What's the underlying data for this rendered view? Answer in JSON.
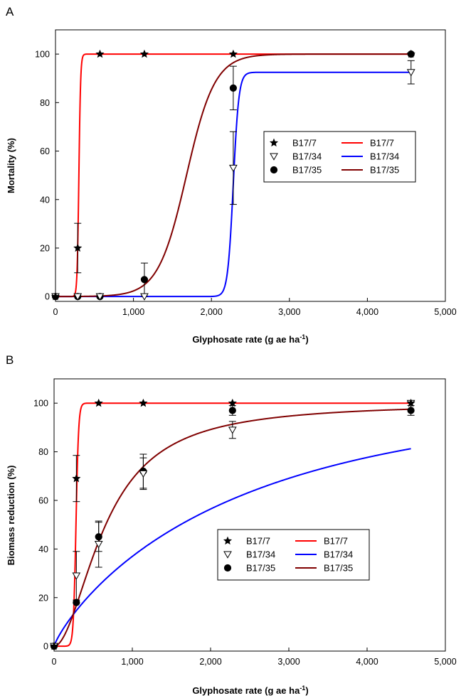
{
  "figure": {
    "panels": [
      "A",
      "B"
    ]
  },
  "chart_data": [
    {
      "type": "scatter",
      "panel_label": "A",
      "title": "",
      "xlabel": "Glyphosate rate (g ae ha",
      "xlabel_sup": "-1",
      "xlabel_suffix": ")",
      "ylabel": "Mortality (%)",
      "xlim": [
        0,
        5000
      ],
      "ylim": [
        -2,
        110
      ],
      "xticks": [
        0,
        1000,
        2000,
        3000,
        4000,
        5000
      ],
      "xtick_labels": [
        "0",
        "1,000",
        "2,000",
        "3,000",
        "4,000",
        "5,000"
      ],
      "yticks": [
        0,
        20,
        40,
        60,
        80,
        100
      ],
      "ytick_labels": [
        "0",
        "20",
        "40",
        "60",
        "80",
        "100"
      ],
      "grid": false,
      "legend_position": "center-right",
      "series": [
        {
          "name": "B17/7",
          "marker": "star",
          "line_color": "#ff0000",
          "x": [
            0,
            285,
            570,
            1140,
            2280,
            4560
          ],
          "y": [
            0,
            20,
            100,
            100,
            100,
            100
          ],
          "err": [
            0,
            10.2,
            0,
            0,
            0,
            0
          ],
          "curve": {
            "model": "logistic",
            "top": 100,
            "bottom": 0,
            "x50": 300,
            "slope": 0.09,
            "x_start": 0,
            "x_end": 4560
          }
        },
        {
          "name": "B17/34",
          "marker": "triangle-down-open",
          "line_color": "#0000ff",
          "x": [
            0,
            285,
            570,
            1140,
            2280,
            4560
          ],
          "y": [
            0,
            0,
            0,
            0,
            53,
            92.5
          ],
          "err": [
            0,
            0,
            0,
            0,
            15,
            4.8
          ],
          "curve": {
            "model": "logistic",
            "top": 92.5,
            "bottom": 0,
            "x50": 2280,
            "slope": 0.028,
            "x_start": 0,
            "x_end": 4560
          }
        },
        {
          "name": "B17/35",
          "marker": "circle-filled",
          "line_color": "#800000",
          "x": [
            0,
            285,
            570,
            1140,
            2280,
            4560
          ],
          "y": [
            0,
            0,
            0,
            7,
            86,
            100
          ],
          "err": [
            0,
            0,
            0,
            6.8,
            9,
            0
          ],
          "curve": {
            "model": "logistic",
            "top": 100,
            "bottom": 0,
            "x50": 1680,
            "slope": 0.0055,
            "x_start": 0,
            "x_end": 4560
          }
        }
      ]
    },
    {
      "type": "scatter",
      "panel_label": "B",
      "title": "",
      "xlabel": "Glyphosate rate (g ae ha",
      "xlabel_sup": "-1",
      "xlabel_suffix": ")",
      "ylabel": "Biomass reduction (%)",
      "xlim": [
        0,
        5000
      ],
      "ylim": [
        -2,
        110
      ],
      "xticks": [
        0,
        1000,
        2000,
        3000,
        4000,
        5000
      ],
      "xtick_labels": [
        "0",
        "1,000",
        "2,000",
        "3,000",
        "4,000",
        "5,000"
      ],
      "yticks": [
        0,
        20,
        40,
        60,
        80,
        100
      ],
      "ytick_labels": [
        "0",
        "20",
        "40",
        "60",
        "80",
        "100"
      ],
      "grid": false,
      "legend_position": "center-right",
      "series": [
        {
          "name": "B17/7",
          "marker": "star",
          "line_color": "#ff0000",
          "x": [
            0,
            285,
            570,
            1140,
            2280,
            4560
          ],
          "y": [
            0,
            69,
            100,
            100,
            100,
            100
          ],
          "err": [
            0,
            9.5,
            0,
            0,
            0,
            0
          ],
          "curve": {
            "model": "logistic",
            "top": 100,
            "bottom": 0,
            "x50": 280,
            "slope": 0.06,
            "x_start": 0,
            "x_end": 4560
          }
        },
        {
          "name": "B17/34",
          "marker": "triangle-down-open",
          "line_color": "#0000ff",
          "x": [
            0,
            285,
            570,
            1140,
            2280,
            4560
          ],
          "y": [
            0,
            29,
            42,
            71,
            89,
            100
          ],
          "err": [
            0,
            10,
            9.5,
            6.5,
            3.5,
            0
          ],
          "curve": {
            "model": "power",
            "top": 100,
            "a": 0.0013,
            "b": 0.85,
            "x_start": 0,
            "x_end": 4560
          }
        },
        {
          "name": "B17/35",
          "marker": "circle-filled",
          "line_color": "#800000",
          "x": [
            0,
            285,
            570,
            1140,
            2280,
            4560
          ],
          "y": [
            0,
            18,
            45,
            72,
            97,
            97
          ],
          "err": [
            0,
            0,
            6,
            7,
            2,
            2
          ],
          "curve": {
            "model": "loglogistic",
            "top": 100,
            "x50": 660,
            "slope": 1.9,
            "x_start": 0,
            "x_end": 4560
          }
        }
      ]
    }
  ]
}
